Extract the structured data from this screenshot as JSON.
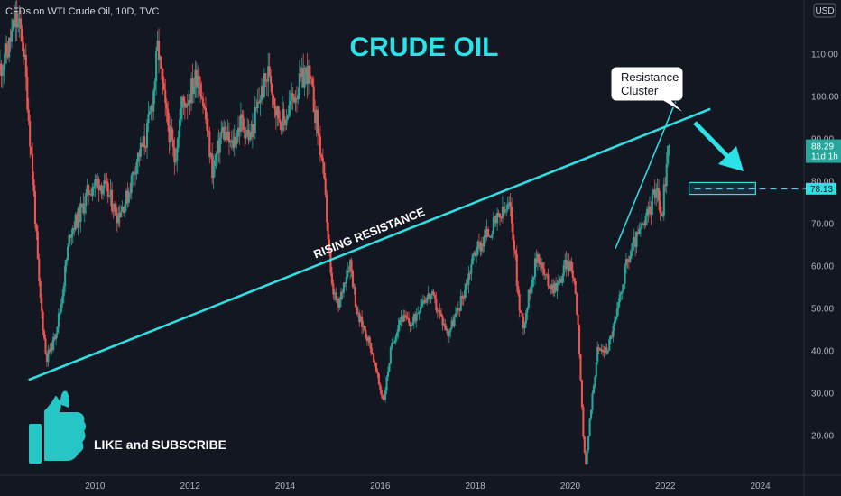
{
  "header": {
    "symbol_line": "CFDs on WTI Crude Oil, 10D, TVC",
    "currency": "USD"
  },
  "title": "CRUDE OIL",
  "annotations": {
    "rising_resistance": "RISING RESISTANCE",
    "resistance_cluster_line1": "Resistance",
    "resistance_cluster_line2": "Cluster",
    "like_subscribe": "LIKE and SUBSCRIBE"
  },
  "price_labels": {
    "last_price": "88.29",
    "countdown": "11d 1h",
    "target": "78.13"
  },
  "colors": {
    "background": "#131722",
    "up_candle": "#26a69a",
    "down_candle": "#ef5350",
    "accent_cyan": "#2de2e6",
    "last_price_box": "#26a69a"
  },
  "chart_data": {
    "type": "candlestick",
    "x_ticks": [
      "2010",
      "2012",
      "2014",
      "2016",
      "2018",
      "2020",
      "2022",
      "2024"
    ],
    "y_ticks": [
      "110.00",
      "100.00",
      "90.00",
      "80.00",
      "70.00",
      "60.00",
      "50.00",
      "40.00",
      "30.00",
      "20.00"
    ],
    "ylim": [
      12,
      118
    ],
    "xlim": [
      2008.0,
      2024.9
    ],
    "series_path": [
      [
        2008.0,
        106
      ],
      [
        2008.2,
        111
      ],
      [
        2008.35,
        118
      ],
      [
        2008.5,
        114
      ],
      [
        2008.6,
        100
      ],
      [
        2008.75,
        75
      ],
      [
        2008.85,
        55
      ],
      [
        2009.0,
        38
      ],
      [
        2009.15,
        42
      ],
      [
        2009.3,
        50
      ],
      [
        2009.5,
        68
      ],
      [
        2009.7,
        72
      ],
      [
        2009.9,
        78
      ],
      [
        2010.1,
        80
      ],
      [
        2010.3,
        77
      ],
      [
        2010.5,
        72
      ],
      [
        2010.7,
        76
      ],
      [
        2010.9,
        85
      ],
      [
        2011.1,
        90
      ],
      [
        2011.25,
        100
      ],
      [
        2011.35,
        112
      ],
      [
        2011.5,
        97
      ],
      [
        2011.7,
        85
      ],
      [
        2011.85,
        98
      ],
      [
        2012.0,
        100
      ],
      [
        2012.2,
        106
      ],
      [
        2012.35,
        95
      ],
      [
        2012.5,
        82
      ],
      [
        2012.7,
        92
      ],
      [
        2012.9,
        88
      ],
      [
        2013.1,
        94
      ],
      [
        2013.3,
        90
      ],
      [
        2013.5,
        100
      ],
      [
        2013.7,
        106
      ],
      [
        2013.85,
        96
      ],
      [
        2014.0,
        94
      ],
      [
        2014.2,
        100
      ],
      [
        2014.4,
        104
      ],
      [
        2014.5,
        106
      ],
      [
        2014.65,
        97
      ],
      [
        2014.8,
        85
      ],
      [
        2014.9,
        72
      ],
      [
        2015.0,
        55
      ],
      [
        2015.15,
        50
      ],
      [
        2015.3,
        58
      ],
      [
        2015.4,
        61
      ],
      [
        2015.55,
        48
      ],
      [
        2015.7,
        45
      ],
      [
        2015.85,
        40
      ],
      [
        2016.0,
        32
      ],
      [
        2016.1,
        28
      ],
      [
        2016.25,
        40
      ],
      [
        2016.45,
        48
      ],
      [
        2016.7,
        46
      ],
      [
        2016.9,
        52
      ],
      [
        2017.1,
        53
      ],
      [
        2017.3,
        48
      ],
      [
        2017.45,
        44
      ],
      [
        2017.65,
        49
      ],
      [
        2017.85,
        56
      ],
      [
        2018.0,
        63
      ],
      [
        2018.2,
        66
      ],
      [
        2018.45,
        70
      ],
      [
        2018.6,
        72
      ],
      [
        2018.75,
        74
      ],
      [
        2018.85,
        65
      ],
      [
        2018.95,
        50
      ],
      [
        2019.05,
        46
      ],
      [
        2019.2,
        56
      ],
      [
        2019.35,
        63
      ],
      [
        2019.5,
        57
      ],
      [
        2019.65,
        55
      ],
      [
        2019.8,
        56
      ],
      [
        2019.95,
        61
      ],
      [
        2020.1,
        58
      ],
      [
        2020.2,
        45
      ],
      [
        2020.3,
        20
      ],
      [
        2020.35,
        12
      ],
      [
        2020.45,
        25
      ],
      [
        2020.6,
        40
      ],
      [
        2020.8,
        40
      ],
      [
        2021.0,
        48
      ],
      [
        2021.2,
        60
      ],
      [
        2021.4,
        66
      ],
      [
        2021.6,
        70
      ],
      [
        2021.75,
        75
      ],
      [
        2021.85,
        80
      ],
      [
        2021.95,
        70
      ],
      [
        2022.0,
        78
      ],
      [
        2022.1,
        88
      ]
    ],
    "rising_resistance_line": {
      "from": [
        2008.6,
        33
      ],
      "to": [
        2022.95,
        97
      ]
    },
    "steep_support_line": {
      "from": [
        2020.95,
        64
      ],
      "to": [
        2022.3,
        101
      ]
    },
    "target_zone": {
      "x_from": 2022.5,
      "x_to": 2023.9,
      "y_from": 76.8,
      "y_to": 79.6
    },
    "target_level": 78.13,
    "last_price": 88.29
  }
}
